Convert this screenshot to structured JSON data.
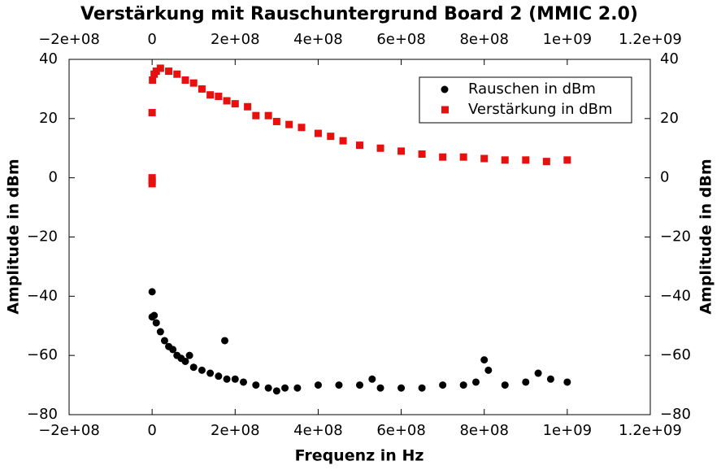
{
  "chart_data": {
    "type": "scatter",
    "title": "Verstärkung mit Rauschuntergrund Board 2 (MMIC 2.0)",
    "x_label": "Frequenz in Hz",
    "y_label": "Amplitude in dBm",
    "xlim": [
      -200000000,
      1200000000
    ],
    "ylim": [
      -80,
      40
    ],
    "xticks": [
      {
        "value": -200000000,
        "label": "−2e+08"
      },
      0,
      {
        "value": 200000000,
        "label": "2e+08"
      },
      {
        "value": 400000000,
        "label": "4e+08"
      },
      {
        "value": 600000000,
        "label": "6e+08"
      },
      {
        "value": 800000000,
        "label": "8e+08"
      },
      {
        "value": 1000000000,
        "label": "1e+09"
      },
      {
        "value": 1200000000,
        "label": "1.2e+09"
      }
    ],
    "yticks": [
      {
        "value": -80,
        "label": "−80"
      },
      {
        "value": -60,
        "label": "−60"
      },
      {
        "value": -40,
        "label": "−40"
      },
      {
        "value": -20,
        "label": "−20"
      },
      0,
      20,
      40
    ],
    "legend": "upper right",
    "series": [
      {
        "name": "Rauschen in dBm",
        "color": "#000000",
        "marker": "circle",
        "x": [
          0,
          0,
          5000000,
          10000000,
          20000000,
          30000000,
          40000000,
          50000000,
          60000000,
          70000000,
          80000000,
          90000000,
          100000000,
          120000000,
          140000000,
          160000000,
          175000000,
          180000000,
          200000000,
          220000000,
          250000000,
          280000000,
          300000000,
          320000000,
          350000000,
          400000000,
          450000000,
          500000000,
          530000000,
          550000000,
          600000000,
          650000000,
          700000000,
          750000000,
          780000000,
          800000000,
          810000000,
          850000000,
          900000000,
          930000000,
          960000000,
          1000000000
        ],
        "values": [
          -38.5,
          -47,
          -46.5,
          -49,
          -52,
          -55,
          -57,
          -58,
          -60,
          -61,
          -62,
          -60,
          -64,
          -65,
          -66,
          -67,
          -55,
          -68,
          -68,
          -69,
          -70,
          -71,
          -72,
          -71,
          -71,
          -70,
          -70,
          -70,
          -68,
          -71,
          -71,
          -71,
          -70,
          -70,
          -69,
          -61.5,
          -65,
          -70,
          -69,
          -66,
          -68,
          -69
        ]
      },
      {
        "name": "Verstärkung in dBm",
        "color": "#e8100f",
        "marker": "square",
        "x": [
          0,
          0,
          0,
          0,
          1000000,
          5000000,
          10000000,
          20000000,
          40000000,
          60000000,
          80000000,
          100000000,
          120000000,
          140000000,
          160000000,
          180000000,
          200000000,
          230000000,
          250000000,
          280000000,
          300000000,
          330000000,
          360000000,
          400000000,
          430000000,
          460000000,
          500000000,
          550000000,
          600000000,
          650000000,
          700000000,
          750000000,
          800000000,
          850000000,
          900000000,
          950000000,
          1000000000
        ],
        "values": [
          -2,
          -1,
          0,
          22,
          33,
          35,
          36,
          37,
          36,
          35,
          33,
          32,
          30,
          28,
          27.5,
          26,
          25,
          24,
          21,
          21,
          19,
          18,
          17,
          15,
          14,
          12.5,
          11,
          10,
          9,
          8,
          7,
          7,
          6.5,
          6,
          6,
          5.5,
          6
        ]
      }
    ]
  }
}
